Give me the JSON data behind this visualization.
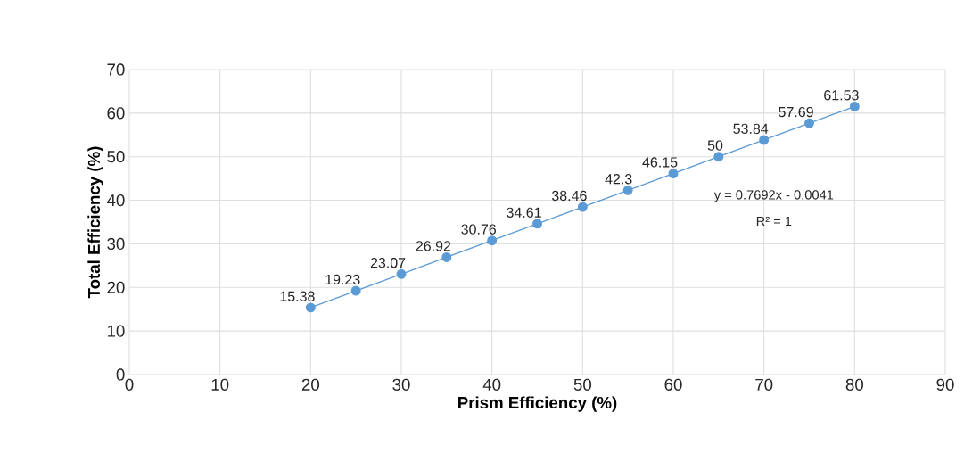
{
  "chart_data": {
    "type": "line",
    "xlabel": "Prism Efficiency (%)",
    "ylabel": "Total Efficiency (%)",
    "x": [
      20,
      25,
      30,
      35,
      40,
      45,
      50,
      55,
      60,
      65,
      70,
      75,
      80
    ],
    "series": [
      {
        "color": "#5b9bd5",
        "values": [
          15.38,
          19.23,
          23.07,
          26.92,
          30.76,
          34.61,
          38.46,
          42.3,
          46.15,
          50,
          53.84,
          57.69,
          61.53
        ]
      }
    ],
    "xlim": [
      0,
      90
    ],
    "ylim": [
      0,
      70
    ],
    "xticks": [
      0,
      10,
      20,
      30,
      40,
      50,
      60,
      70,
      80,
      90
    ],
    "yticks": [
      0,
      10,
      20,
      30,
      40,
      50,
      60,
      70
    ],
    "grid": true,
    "marker": "circle",
    "line_style": "solid",
    "data_labels": true,
    "annotations": [
      "y = 0.7692x - 0.0041",
      "R² = 1"
    ]
  }
}
